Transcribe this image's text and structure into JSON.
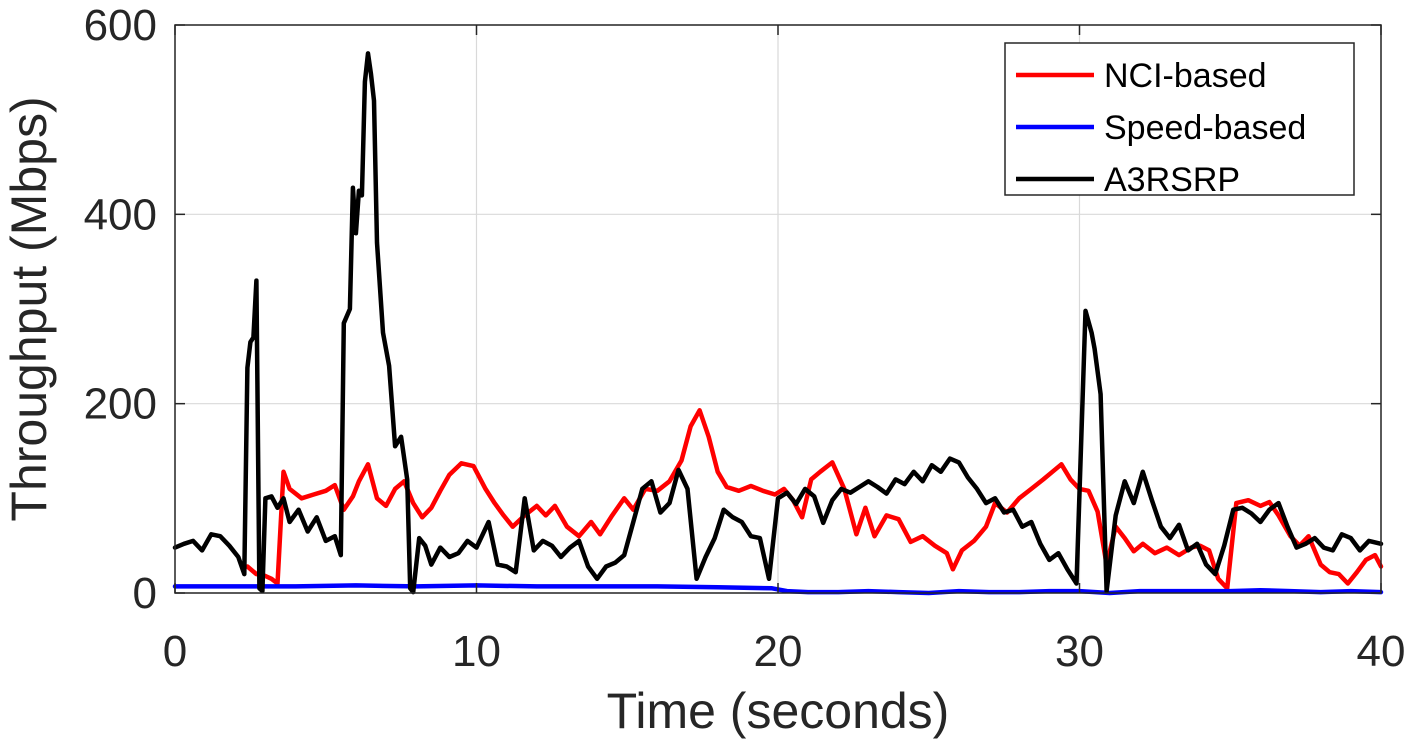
{
  "chart_data": {
    "type": "line",
    "title": "",
    "xlabel": "Time (seconds)",
    "ylabel": "Throughput (Mbps)",
    "xlim": [
      0,
      40
    ],
    "ylim": [
      0,
      600
    ],
    "xticks": [
      "0",
      "10",
      "20",
      "30",
      "40"
    ],
    "yticks": [
      "0",
      "200",
      "400",
      "600"
    ],
    "grid": true,
    "legend_position": "top-right",
    "series": [
      {
        "name": "NCI-based",
        "color": "#ff0000",
        "points": [
          [
            2.4,
            28
          ],
          [
            2.7,
            20
          ],
          [
            3.0,
            18
          ],
          [
            3.2,
            15
          ],
          [
            3.4,
            10
          ],
          [
            3.6,
            128
          ],
          [
            3.8,
            110
          ],
          [
            4.2,
            100
          ],
          [
            4.6,
            104
          ],
          [
            5.0,
            108
          ],
          [
            5.3,
            114
          ],
          [
            5.6,
            88
          ],
          [
            5.9,
            102
          ],
          [
            6.1,
            118
          ],
          [
            6.4,
            136
          ],
          [
            6.7,
            100
          ],
          [
            7.0,
            92
          ],
          [
            7.3,
            110
          ],
          [
            7.6,
            118
          ],
          [
            7.9,
            95
          ],
          [
            8.2,
            80
          ],
          [
            8.5,
            90
          ],
          [
            8.8,
            108
          ],
          [
            9.1,
            125
          ],
          [
            9.5,
            137
          ],
          [
            9.9,
            134
          ],
          [
            10.3,
            110
          ],
          [
            10.6,
            95
          ],
          [
            10.9,
            82
          ],
          [
            11.2,
            70
          ],
          [
            11.6,
            82
          ],
          [
            12.0,
            92
          ],
          [
            12.3,
            82
          ],
          [
            12.6,
            92
          ],
          [
            13.0,
            70
          ],
          [
            13.4,
            60
          ],
          [
            13.8,
            75
          ],
          [
            14.1,
            62
          ],
          [
            14.5,
            82
          ],
          [
            14.9,
            100
          ],
          [
            15.2,
            88
          ],
          [
            15.6,
            110
          ],
          [
            16.0,
            108
          ],
          [
            16.4,
            118
          ],
          [
            16.8,
            140
          ],
          [
            17.1,
            176
          ],
          [
            17.4,
            193
          ],
          [
            17.7,
            165
          ],
          [
            18.0,
            128
          ],
          [
            18.3,
            112
          ],
          [
            18.7,
            108
          ],
          [
            19.1,
            113
          ],
          [
            19.5,
            108
          ],
          [
            19.9,
            104
          ],
          [
            20.2,
            110
          ],
          [
            20.5,
            98
          ],
          [
            20.8,
            80
          ],
          [
            21.1,
            120
          ],
          [
            21.4,
            128
          ],
          [
            21.8,
            138
          ],
          [
            22.2,
            110
          ],
          [
            22.6,
            62
          ],
          [
            22.9,
            90
          ],
          [
            23.2,
            60
          ],
          [
            23.6,
            82
          ],
          [
            24.0,
            78
          ],
          [
            24.4,
            54
          ],
          [
            24.8,
            60
          ],
          [
            25.2,
            50
          ],
          [
            25.6,
            42
          ],
          [
            25.8,
            25
          ],
          [
            26.1,
            45
          ],
          [
            26.5,
            55
          ],
          [
            26.9,
            70
          ],
          [
            27.2,
            95
          ],
          [
            27.6,
            85
          ],
          [
            28.0,
            100
          ],
          [
            28.4,
            110
          ],
          [
            28.8,
            120
          ],
          [
            29.1,
            128
          ],
          [
            29.4,
            136
          ],
          [
            29.7,
            120
          ],
          [
            30.0,
            110
          ],
          [
            30.3,
            108
          ],
          [
            30.6,
            86
          ],
          [
            30.9,
            30
          ],
          [
            31.2,
            70
          ],
          [
            31.5,
            58
          ],
          [
            31.8,
            44
          ],
          [
            32.1,
            52
          ],
          [
            32.5,
            42
          ],
          [
            32.9,
            48
          ],
          [
            33.3,
            40
          ],
          [
            33.7,
            48
          ],
          [
            34.0,
            50
          ],
          [
            34.3,
            45
          ],
          [
            34.6,
            15
          ],
          [
            34.9,
            5
          ],
          [
            35.2,
            95
          ],
          [
            35.6,
            98
          ],
          [
            36.0,
            92
          ],
          [
            36.3,
            96
          ],
          [
            36.6,
            82
          ],
          [
            37.0,
            60
          ],
          [
            37.3,
            50
          ],
          [
            37.6,
            60
          ],
          [
            38.0,
            30
          ],
          [
            38.3,
            22
          ],
          [
            38.6,
            20
          ],
          [
            38.9,
            10
          ],
          [
            39.2,
            22
          ],
          [
            39.5,
            35
          ],
          [
            39.8,
            40
          ],
          [
            40.0,
            28
          ]
        ]
      },
      {
        "name": "Speed-based",
        "color": "#0000ff",
        "points": [
          [
            0,
            7
          ],
          [
            2,
            7
          ],
          [
            4,
            7
          ],
          [
            6,
            8
          ],
          [
            8,
            7
          ],
          [
            10,
            8
          ],
          [
            12,
            7
          ],
          [
            14,
            7
          ],
          [
            16,
            7
          ],
          [
            18,
            6
          ],
          [
            19.8,
            5
          ],
          [
            20.3,
            2
          ],
          [
            21,
            1
          ],
          [
            22,
            1
          ],
          [
            23,
            2
          ],
          [
            24,
            1
          ],
          [
            25,
            0
          ],
          [
            26,
            2
          ],
          [
            27,
            1
          ],
          [
            28,
            1
          ],
          [
            29,
            2
          ],
          [
            30,
            2
          ],
          [
            31,
            0
          ],
          [
            32,
            2
          ],
          [
            33,
            2
          ],
          [
            34,
            2
          ],
          [
            35,
            2
          ],
          [
            36,
            3
          ],
          [
            37,
            2
          ],
          [
            38,
            1
          ],
          [
            39,
            2
          ],
          [
            40,
            1
          ]
        ]
      },
      {
        "name": "A3RSRP",
        "color": "#000000",
        "points": [
          [
            0,
            48
          ],
          [
            0.3,
            52
          ],
          [
            0.6,
            55
          ],
          [
            0.9,
            45
          ],
          [
            1.2,
            62
          ],
          [
            1.5,
            60
          ],
          [
            1.8,
            50
          ],
          [
            2.1,
            38
          ],
          [
            2.3,
            20
          ],
          [
            2.4,
            238
          ],
          [
            2.5,
            265
          ],
          [
            2.6,
            270
          ],
          [
            2.7,
            330
          ],
          [
            2.8,
            5
          ],
          [
            2.9,
            2
          ],
          [
            3.0,
            100
          ],
          [
            3.2,
            102
          ],
          [
            3.4,
            90
          ],
          [
            3.6,
            100
          ],
          [
            3.8,
            75
          ],
          [
            4.1,
            88
          ],
          [
            4.4,
            65
          ],
          [
            4.7,
            80
          ],
          [
            5.0,
            55
          ],
          [
            5.3,
            60
          ],
          [
            5.5,
            40
          ],
          [
            5.6,
            285
          ],
          [
            5.8,
            300
          ],
          [
            5.9,
            428
          ],
          [
            6.0,
            380
          ],
          [
            6.1,
            425
          ],
          [
            6.2,
            420
          ],
          [
            6.3,
            540
          ],
          [
            6.4,
            570
          ],
          [
            6.5,
            548
          ],
          [
            6.6,
            520
          ],
          [
            6.7,
            370
          ],
          [
            6.9,
            275
          ],
          [
            7.1,
            240
          ],
          [
            7.3,
            155
          ],
          [
            7.5,
            165
          ],
          [
            7.7,
            120
          ],
          [
            7.8,
            5
          ],
          [
            7.9,
            1
          ],
          [
            8.1,
            58
          ],
          [
            8.3,
            50
          ],
          [
            8.5,
            30
          ],
          [
            8.8,
            48
          ],
          [
            9.1,
            38
          ],
          [
            9.4,
            42
          ],
          [
            9.7,
            55
          ],
          [
            10.0,
            48
          ],
          [
            10.4,
            75
          ],
          [
            10.7,
            30
          ],
          [
            11.0,
            28
          ],
          [
            11.3,
            22
          ],
          [
            11.6,
            100
          ],
          [
            11.9,
            45
          ],
          [
            12.2,
            55
          ],
          [
            12.5,
            50
          ],
          [
            12.8,
            38
          ],
          [
            13.1,
            48
          ],
          [
            13.4,
            55
          ],
          [
            13.7,
            28
          ],
          [
            14.0,
            15
          ],
          [
            14.3,
            28
          ],
          [
            14.6,
            32
          ],
          [
            14.9,
            40
          ],
          [
            15.2,
            75
          ],
          [
            15.5,
            110
          ],
          [
            15.8,
            118
          ],
          [
            16.1,
            85
          ],
          [
            16.4,
            95
          ],
          [
            16.7,
            130
          ],
          [
            17.0,
            110
          ],
          [
            17.3,
            15
          ],
          [
            17.6,
            38
          ],
          [
            17.9,
            58
          ],
          [
            18.2,
            88
          ],
          [
            18.5,
            80
          ],
          [
            18.8,
            75
          ],
          [
            19.1,
            60
          ],
          [
            19.4,
            58
          ],
          [
            19.7,
            15
          ],
          [
            20.0,
            100
          ],
          [
            20.3,
            106
          ],
          [
            20.6,
            94
          ],
          [
            20.9,
            110
          ],
          [
            21.2,
            102
          ],
          [
            21.5,
            74
          ],
          [
            21.8,
            98
          ],
          [
            22.1,
            110
          ],
          [
            22.4,
            106
          ],
          [
            22.7,
            112
          ],
          [
            23.0,
            118
          ],
          [
            23.3,
            112
          ],
          [
            23.6,
            105
          ],
          [
            23.9,
            120
          ],
          [
            24.2,
            115
          ],
          [
            24.5,
            128
          ],
          [
            24.8,
            118
          ],
          [
            25.1,
            135
          ],
          [
            25.4,
            128
          ],
          [
            25.7,
            142
          ],
          [
            26.0,
            138
          ],
          [
            26.3,
            122
          ],
          [
            26.6,
            110
          ],
          [
            26.9,
            95
          ],
          [
            27.2,
            100
          ],
          [
            27.5,
            85
          ],
          [
            27.8,
            88
          ],
          [
            28.1,
            70
          ],
          [
            28.4,
            75
          ],
          [
            28.7,
            52
          ],
          [
            29.0,
            35
          ],
          [
            29.3,
            42
          ],
          [
            29.6,
            25
          ],
          [
            29.9,
            10
          ],
          [
            30.2,
            298
          ],
          [
            30.4,
            275
          ],
          [
            30.5,
            258
          ],
          [
            30.7,
            210
          ],
          [
            30.9,
            2
          ],
          [
            31.2,
            82
          ],
          [
            31.5,
            118
          ],
          [
            31.8,
            95
          ],
          [
            32.1,
            128
          ],
          [
            32.4,
            98
          ],
          [
            32.7,
            70
          ],
          [
            33.0,
            58
          ],
          [
            33.3,
            72
          ],
          [
            33.6,
            45
          ],
          [
            33.9,
            52
          ],
          [
            34.2,
            30
          ],
          [
            34.5,
            20
          ],
          [
            34.8,
            50
          ],
          [
            35.1,
            88
          ],
          [
            35.4,
            90
          ],
          [
            35.7,
            84
          ],
          [
            36.0,
            75
          ],
          [
            36.3,
            88
          ],
          [
            36.6,
            95
          ],
          [
            36.9,
            70
          ],
          [
            37.2,
            48
          ],
          [
            37.5,
            52
          ],
          [
            37.8,
            58
          ],
          [
            38.1,
            48
          ],
          [
            38.4,
            45
          ],
          [
            38.7,
            62
          ],
          [
            39.0,
            58
          ],
          [
            39.3,
            45
          ],
          [
            39.6,
            55
          ],
          [
            40.0,
            52
          ]
        ]
      }
    ]
  }
}
